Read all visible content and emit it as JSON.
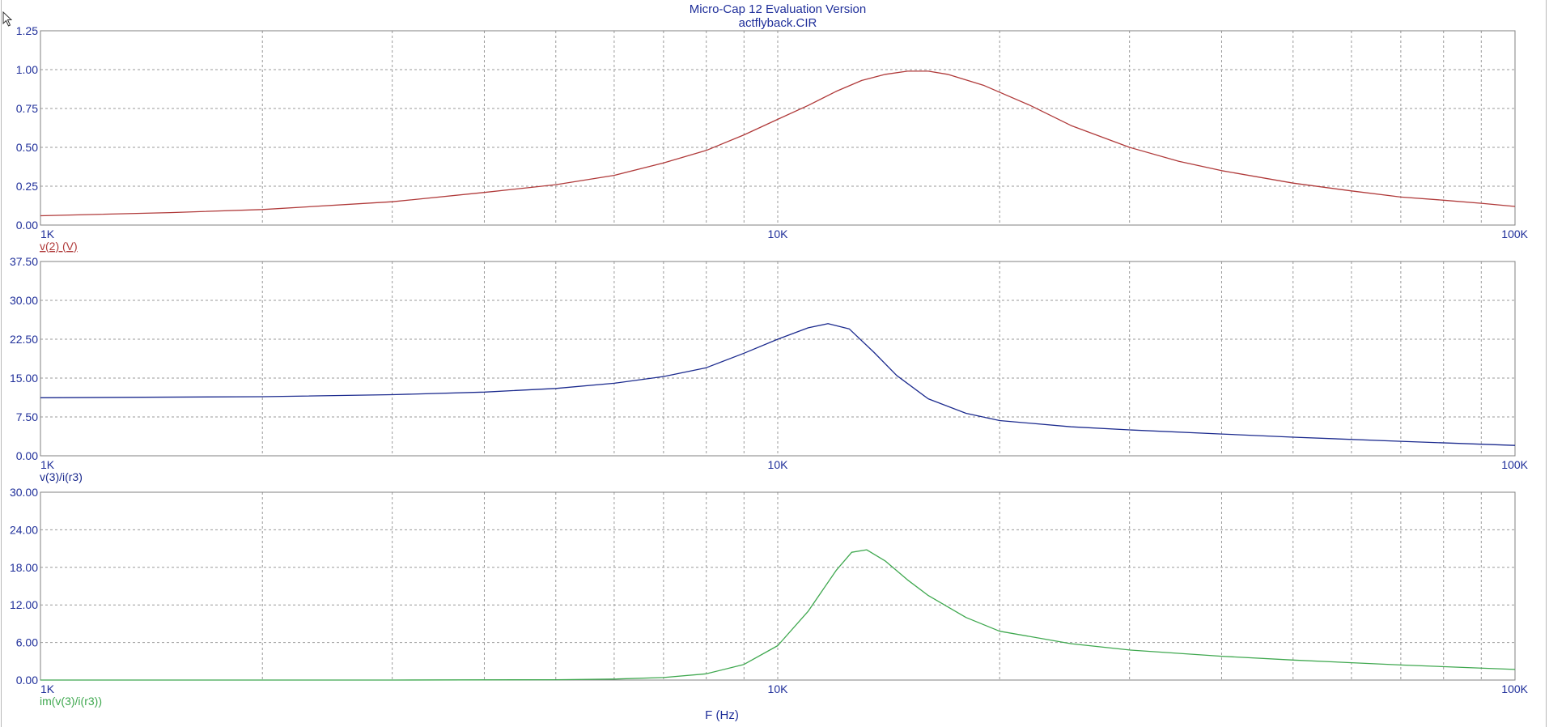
{
  "window": {
    "title": "Micro-Cap 12 Evaluation Version",
    "subtitle": "actflyback.CIR"
  },
  "chart_data": {
    "type": "line",
    "xlabel": "F (Hz)",
    "x_scale": "log",
    "xlim": [
      1000,
      100000
    ],
    "x_tick_labels": [
      "1K",
      "10K",
      "100K"
    ],
    "grid": true,
    "plots": [
      {
        "series_name": "v(2) (V)",
        "color": "#b03a3a",
        "underline_label": true,
        "ylim": [
          0,
          1.25
        ],
        "y_tick_labels": [
          "0.00",
          "0.25",
          "0.50",
          "0.75",
          "1.00",
          "1.25"
        ],
        "points": [
          [
            1000,
            0.06
          ],
          [
            1500,
            0.08
          ],
          [
            2000,
            0.1
          ],
          [
            3000,
            0.15
          ],
          [
            4000,
            0.21
          ],
          [
            5000,
            0.26
          ],
          [
            6000,
            0.32
          ],
          [
            7000,
            0.4
          ],
          [
            8000,
            0.48
          ],
          [
            9000,
            0.58
          ],
          [
            10000,
            0.68
          ],
          [
            11000,
            0.77
          ],
          [
            12000,
            0.86
          ],
          [
            13000,
            0.93
          ],
          [
            14000,
            0.97
          ],
          [
            15000,
            0.99
          ],
          [
            16000,
            0.99
          ],
          [
            17000,
            0.97
          ],
          [
            19000,
            0.9
          ],
          [
            22000,
            0.77
          ],
          [
            25000,
            0.64
          ],
          [
            30000,
            0.5
          ],
          [
            35000,
            0.41
          ],
          [
            40000,
            0.35
          ],
          [
            50000,
            0.27
          ],
          [
            60000,
            0.22
          ],
          [
            70000,
            0.18
          ],
          [
            80000,
            0.16
          ],
          [
            90000,
            0.14
          ],
          [
            100000,
            0.12
          ]
        ]
      },
      {
        "series_name": "v(3)/i(r3)",
        "color": "#1b2a8e",
        "underline_label": false,
        "ylim": [
          0,
          37.5
        ],
        "y_tick_labels": [
          "0.00",
          "7.50",
          "15.00",
          "22.50",
          "30.00",
          "37.50"
        ],
        "points": [
          [
            1000,
            11.2
          ],
          [
            2000,
            11.4
          ],
          [
            3000,
            11.8
          ],
          [
            4000,
            12.3
          ],
          [
            5000,
            13.0
          ],
          [
            6000,
            14.0
          ],
          [
            7000,
            15.3
          ],
          [
            8000,
            17.0
          ],
          [
            9000,
            19.8
          ],
          [
            10000,
            22.5
          ],
          [
            11000,
            24.7
          ],
          [
            11700,
            25.5
          ],
          [
            12500,
            24.5
          ],
          [
            13500,
            20.0
          ],
          [
            14500,
            15.5
          ],
          [
            16000,
            11.0
          ],
          [
            18000,
            8.2
          ],
          [
            20000,
            6.8
          ],
          [
            25000,
            5.6
          ],
          [
            30000,
            5.0
          ],
          [
            40000,
            4.2
          ],
          [
            50000,
            3.6
          ],
          [
            70000,
            2.8
          ],
          [
            100000,
            2.0
          ]
        ]
      },
      {
        "series_name": "im(v(3)/i(r3))",
        "color": "#3fa84f",
        "underline_label": false,
        "ylim": [
          0,
          30
        ],
        "y_tick_labels": [
          "0.00",
          "6.00",
          "12.00",
          "18.00",
          "24.00",
          "30.00"
        ],
        "points": [
          [
            1000,
            0.0
          ],
          [
            3000,
            0.0
          ],
          [
            5000,
            0.05
          ],
          [
            6000,
            0.15
          ],
          [
            7000,
            0.4
          ],
          [
            8000,
            1.0
          ],
          [
            9000,
            2.5
          ],
          [
            10000,
            5.5
          ],
          [
            11000,
            11.0
          ],
          [
            12000,
            17.5
          ],
          [
            12600,
            20.4
          ],
          [
            13200,
            20.8
          ],
          [
            14000,
            19.0
          ],
          [
            15000,
            16.0
          ],
          [
            16000,
            13.5
          ],
          [
            18000,
            10.0
          ],
          [
            20000,
            7.8
          ],
          [
            25000,
            5.8
          ],
          [
            30000,
            4.8
          ],
          [
            40000,
            3.8
          ],
          [
            50000,
            3.2
          ],
          [
            70000,
            2.4
          ],
          [
            100000,
            1.7
          ]
        ]
      }
    ]
  }
}
